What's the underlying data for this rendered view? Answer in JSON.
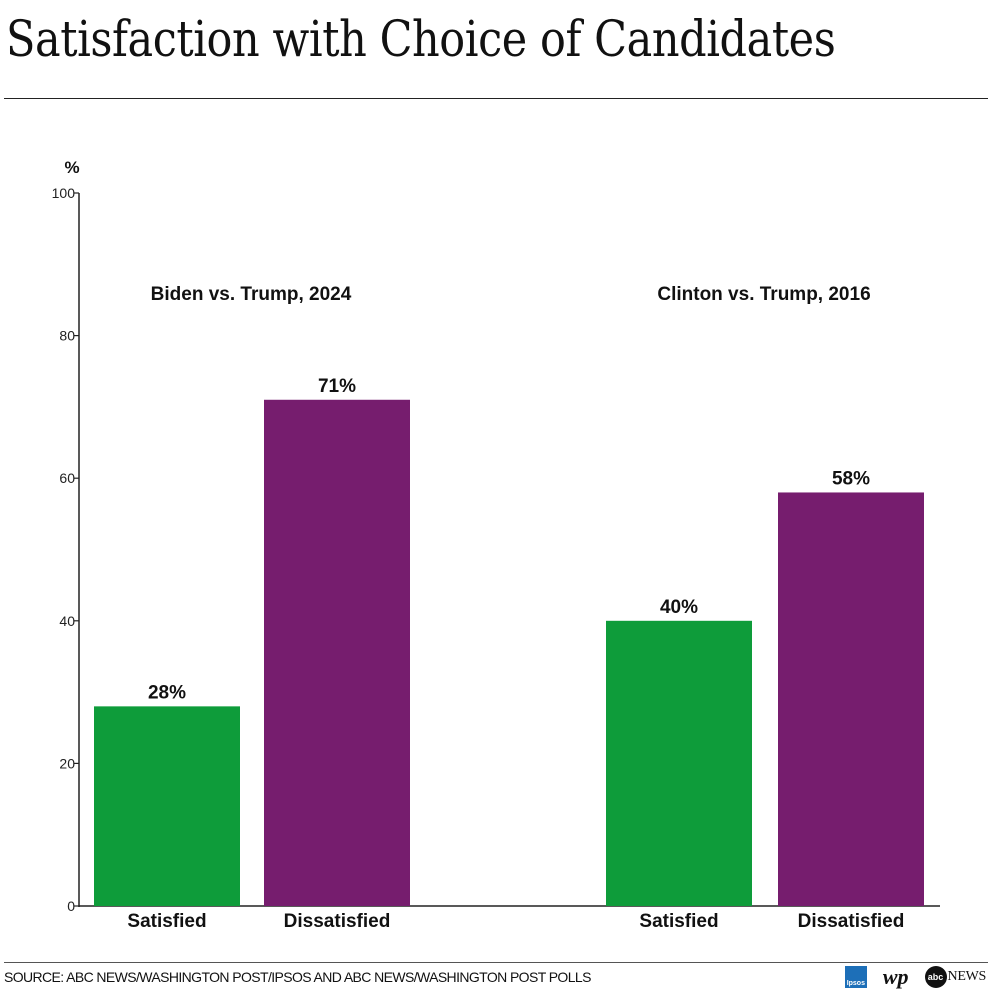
{
  "header": {
    "title": "Satisfaction with Choice of Candidates"
  },
  "footer": {
    "source": "SOURCE: ABC NEWS/WASHINGTON POST/IPSOS AND ABC NEWS/WASHINGTON POST POLLS"
  },
  "logos": {
    "ipsos": "Ipsos",
    "wp": "wp",
    "abc": "abc",
    "news": "NEWS"
  },
  "colors": {
    "satisfied": "#0e9c3a",
    "dissatisfied": "#761d6e",
    "axis": "#222222"
  },
  "chart_data": {
    "type": "bar",
    "ylabel": "%",
    "ylim": [
      0,
      100
    ],
    "yticks": [
      0,
      20,
      40,
      60,
      80,
      100
    ],
    "grid": false,
    "groups": [
      {
        "label": "Biden vs. Trump, 2024",
        "bars": [
          {
            "category": "Satisfied",
            "value": 28,
            "label": "28%"
          },
          {
            "category": "Dissatisfied",
            "value": 71,
            "label": "71%"
          }
        ]
      },
      {
        "label": "Clinton vs. Trump, 2016",
        "bars": [
          {
            "category": "Satisfied",
            "value": 40,
            "label": "40%"
          },
          {
            "category": "Dissatisfied",
            "value": 58,
            "label": "58%"
          }
        ]
      }
    ]
  }
}
